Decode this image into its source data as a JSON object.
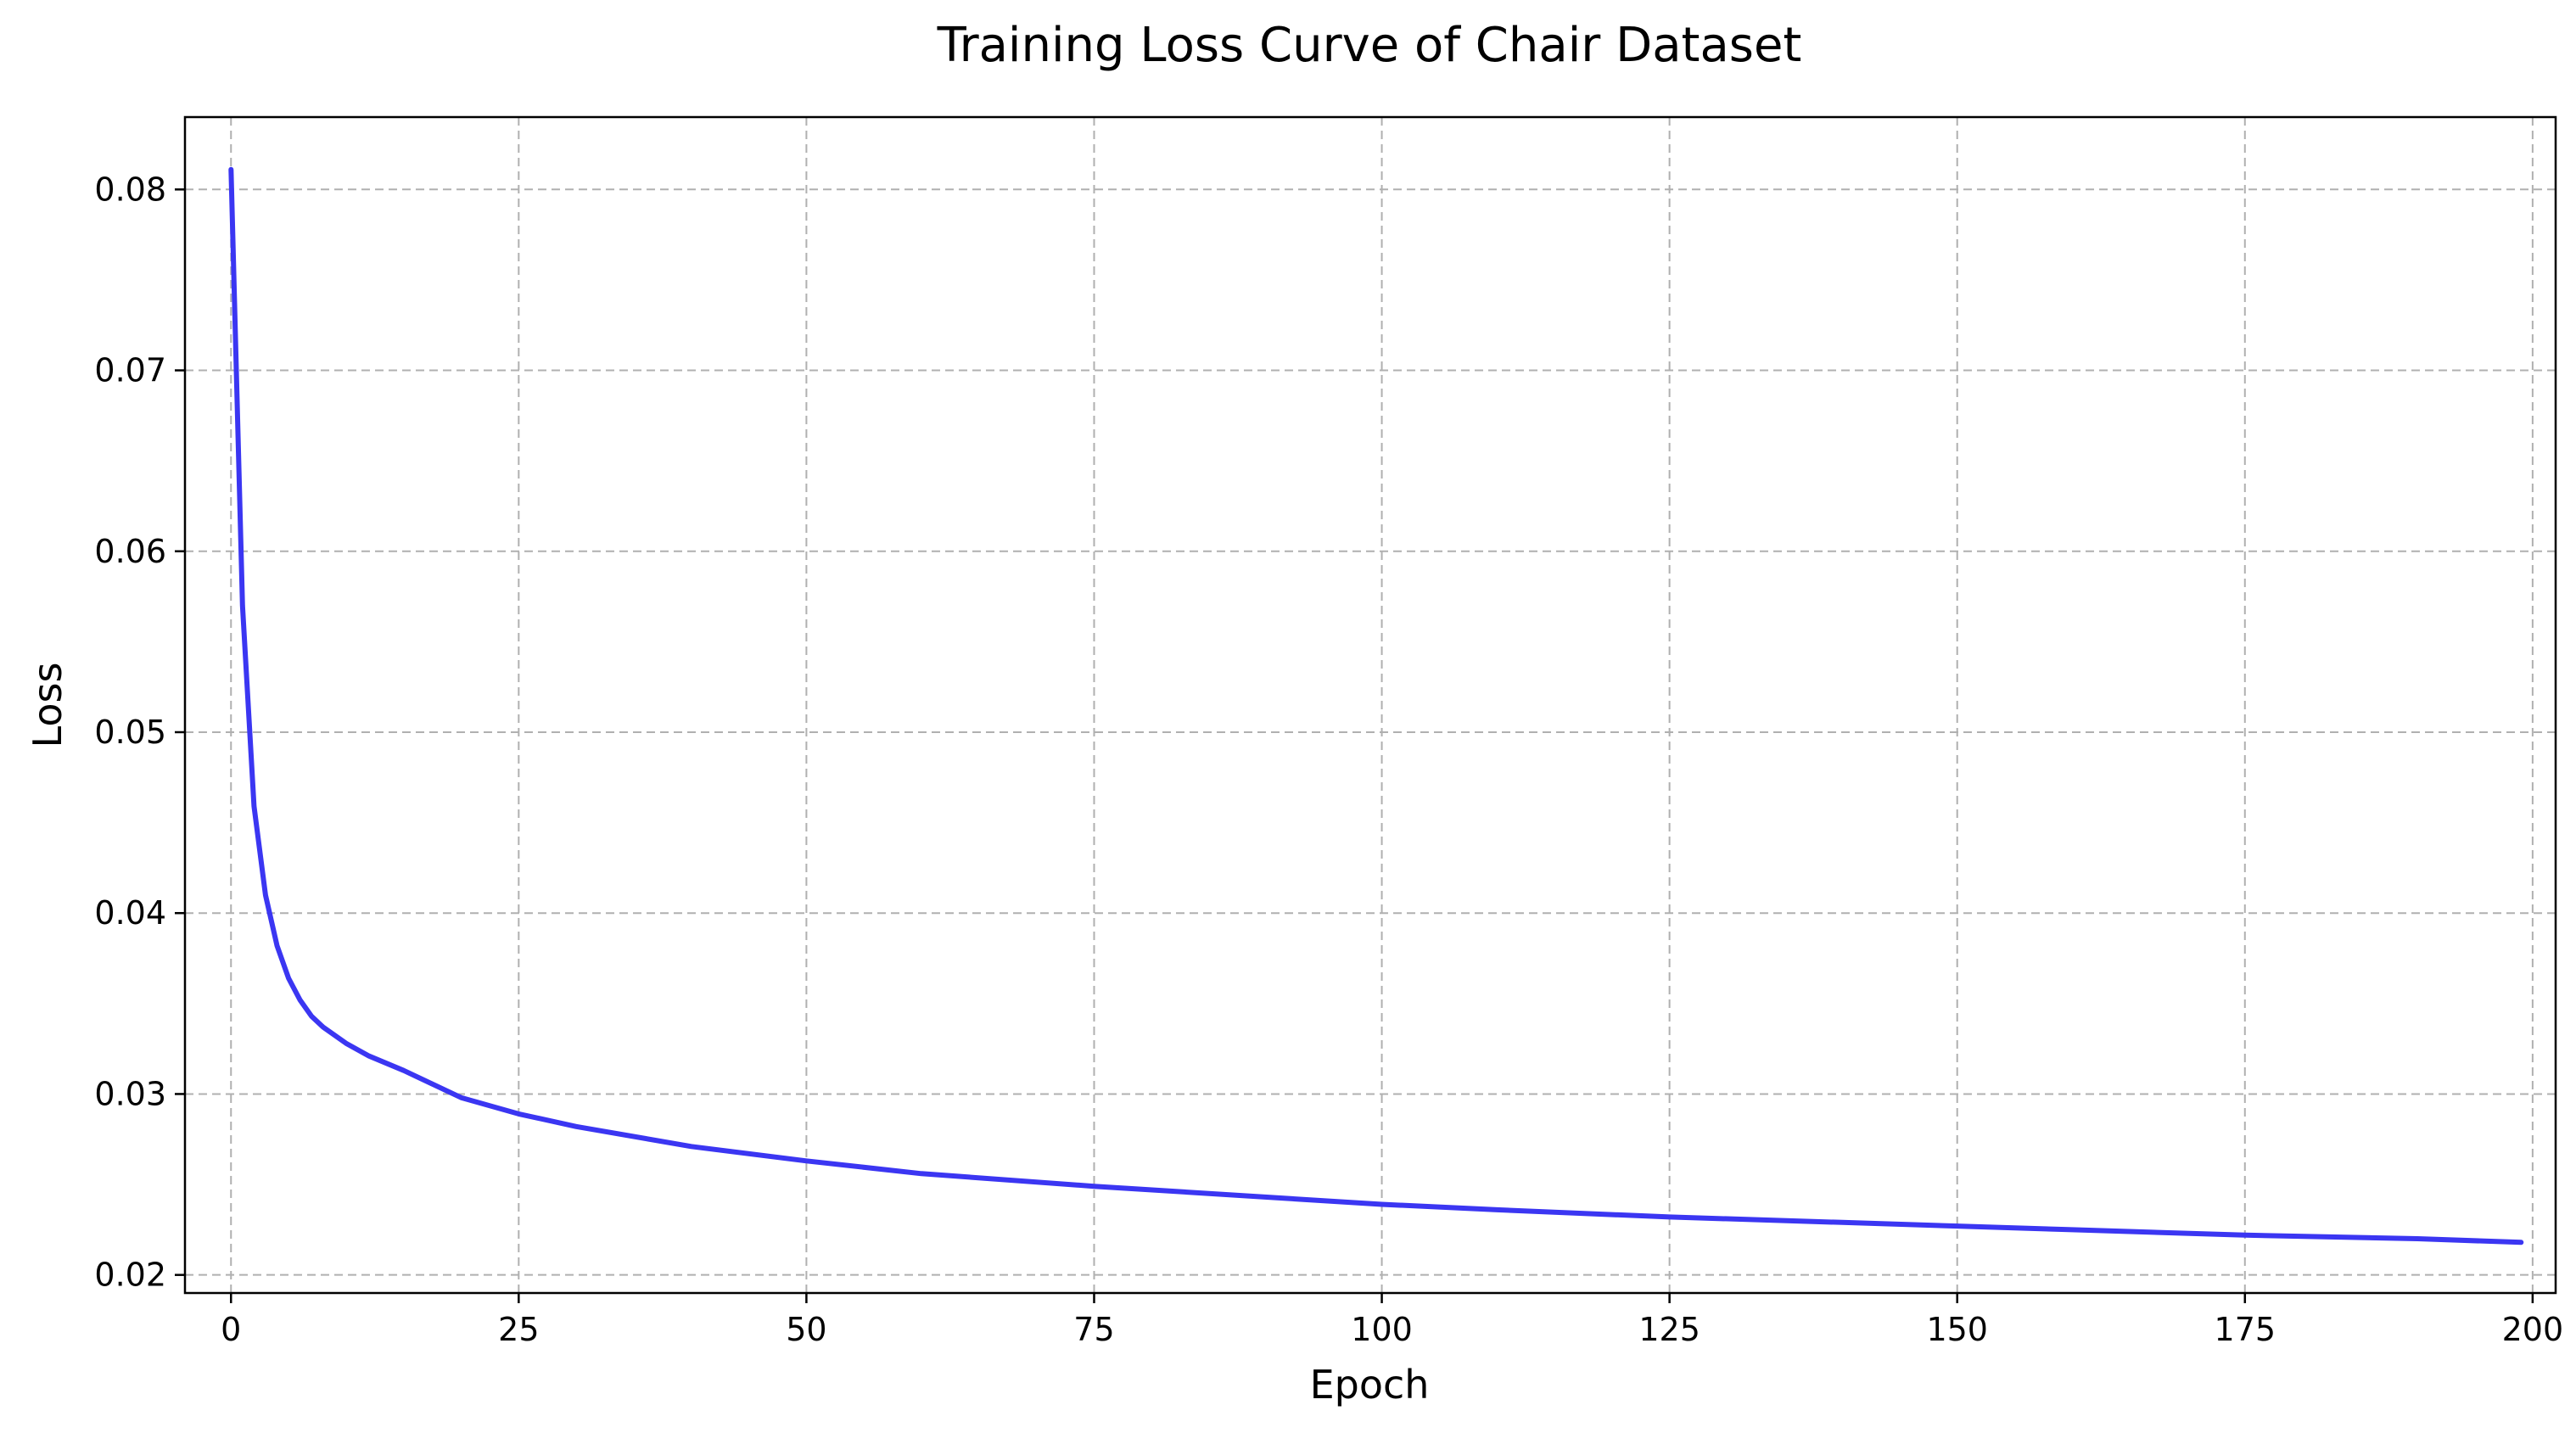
{
  "chart_data": {
    "type": "line",
    "title": "Training Loss Curve of Chair Dataset",
    "xlabel": "Epoch",
    "ylabel": "Loss",
    "xlim": [
      -4,
      202
    ],
    "ylim": [
      0.019,
      0.084
    ],
    "xticks": [
      0,
      25,
      50,
      75,
      100,
      125,
      150,
      175,
      200
    ],
    "xtick_labels": [
      "0",
      "25",
      "50",
      "75",
      "100",
      "125",
      "150",
      "175",
      "200"
    ],
    "yticks": [
      0.02,
      0.03,
      0.04,
      0.05,
      0.06,
      0.07,
      0.08
    ],
    "ytick_labels": [
      "0.02",
      "0.03",
      "0.04",
      "0.05",
      "0.06",
      "0.07",
      "0.08"
    ],
    "grid": true,
    "grid_style": "dashed",
    "line_color": "#3b36f2",
    "series": [
      {
        "x": [
          0,
          1,
          2,
          3,
          4,
          5,
          6,
          7,
          8,
          10,
          12,
          15,
          20,
          25,
          30,
          40,
          50,
          60,
          75,
          90,
          100,
          110,
          125,
          140,
          150,
          160,
          175,
          190,
          199
        ],
        "values": [
          0.0811,
          0.057,
          0.0459,
          0.041,
          0.0382,
          0.0364,
          0.0352,
          0.0343,
          0.0337,
          0.0328,
          0.0321,
          0.0313,
          0.0298,
          0.0289,
          0.0282,
          0.0271,
          0.0263,
          0.0256,
          0.0249,
          0.0243,
          0.0239,
          0.0236,
          0.0232,
          0.0229,
          0.0227,
          0.0225,
          0.0222,
          0.022,
          0.0218
        ]
      }
    ]
  }
}
